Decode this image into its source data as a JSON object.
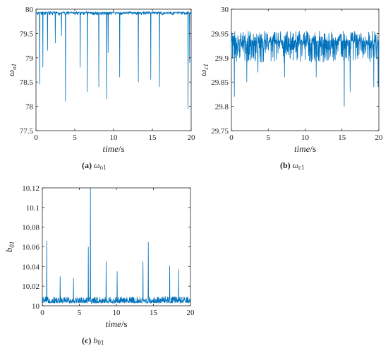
{
  "chart_data": [
    {
      "id": "a",
      "type": "line",
      "color": "#0072BD",
      "xlabel": "time/s",
      "ylabel": "ω_o1",
      "xlim": [
        0,
        20
      ],
      "ylim": [
        77.5,
        80
      ],
      "xticks": [
        0,
        5,
        10,
        15,
        20
      ],
      "yticks": [
        77.5,
        78,
        78.5,
        79,
        79.5,
        80
      ],
      "xtick_labels": [
        "0",
        "5",
        "10",
        "15",
        "20"
      ],
      "ytick_labels": [
        "77.5",
        "78",
        "78.5",
        "79",
        "79.5",
        "80"
      ],
      "baseline": 79.93,
      "noise": 0.05,
      "spikes": [
        [
          0.5,
          78.45
        ],
        [
          0.9,
          78.8
        ],
        [
          1.5,
          79.15
        ],
        [
          2.5,
          79.3
        ],
        [
          3.3,
          79.45
        ],
        [
          3.8,
          78.1
        ],
        [
          5.7,
          78.8
        ],
        [
          6.6,
          78.3
        ],
        [
          8.1,
          78.4
        ],
        [
          9.1,
          78.15
        ],
        [
          9.3,
          79.1
        ],
        [
          10.8,
          78.6
        ],
        [
          13.2,
          78.5
        ],
        [
          14.8,
          78.55
        ],
        [
          15.9,
          78.4
        ],
        [
          19.6,
          77.95
        ],
        [
          19.8,
          78.9
        ]
      ],
      "caption": {
        "letter": "(a)",
        "symbol": "ω",
        "sub": "o1"
      }
    },
    {
      "id": "b",
      "type": "line",
      "color": "#0072BD",
      "xlabel": "time/s",
      "ylabel": "ω_c1",
      "xlim": [
        0,
        20
      ],
      "ylim": [
        29.75,
        30
      ],
      "xticks": [
        0,
        5,
        10,
        15,
        20
      ],
      "yticks": [
        29.75,
        29.8,
        29.85,
        29.9,
        29.95,
        30
      ],
      "xtick_labels": [
        "0",
        "5",
        "10",
        "15",
        "20"
      ],
      "ytick_labels": [
        "29.75",
        "29.8",
        "29.85",
        "29.9",
        "29.95",
        "30"
      ],
      "baseline": 29.935,
      "noise": 0.045,
      "spikes": [
        [
          0.4,
          29.82
        ],
        [
          2.1,
          29.85
        ],
        [
          3.6,
          29.87
        ],
        [
          7.2,
          29.86
        ],
        [
          11.5,
          29.86
        ],
        [
          15.3,
          29.8
        ],
        [
          16.1,
          29.83
        ],
        [
          19.3,
          29.84
        ],
        [
          19.9,
          29.84
        ]
      ],
      "caption": {
        "letter": "(b)",
        "symbol": "ω",
        "sub": "c1"
      }
    },
    {
      "id": "c",
      "type": "line",
      "color": "#0072BD",
      "xlabel": "time/s",
      "ylabel": "b_01",
      "xlim": [
        0,
        20
      ],
      "ylim": [
        10,
        10.12
      ],
      "xticks": [
        0,
        5,
        10,
        15,
        20
      ],
      "yticks": [
        10,
        10.02,
        10.04,
        10.06,
        10.08,
        10.1,
        10.12
      ],
      "xtick_labels": [
        "0",
        "5",
        "10",
        "15",
        "20"
      ],
      "ytick_labels": [
        "10",
        "10.02",
        "10.04",
        "10.06",
        "10.08",
        "10.1",
        "10.12"
      ],
      "baseline": 10.004,
      "noise": 0.006,
      "spikes": [
        [
          0.6,
          10.066
        ],
        [
          2.4,
          10.03
        ],
        [
          4.2,
          10.028
        ],
        [
          6.2,
          10.06
        ],
        [
          6.5,
          10.12
        ],
        [
          8.6,
          10.045
        ],
        [
          10.1,
          10.035
        ],
        [
          13.6,
          10.045
        ],
        [
          14.3,
          10.065
        ],
        [
          17.2,
          10.041
        ],
        [
          18.4,
          10.037
        ]
      ],
      "caption": {
        "letter": "(c)",
        "symbol": "b",
        "sub": "01"
      }
    }
  ]
}
